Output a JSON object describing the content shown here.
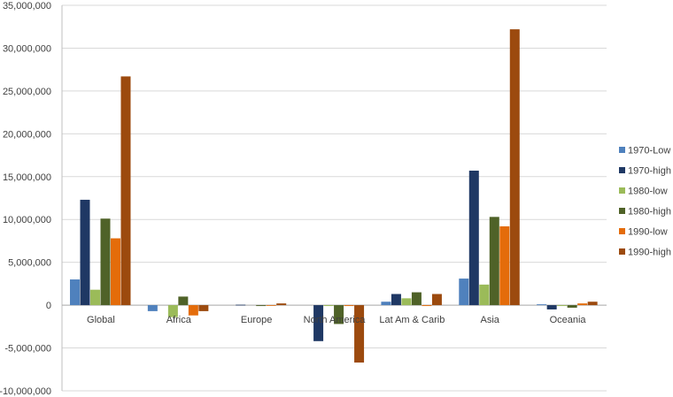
{
  "chart_data": {
    "type": "bar",
    "title": "",
    "xlabel": "",
    "ylabel": "",
    "categories": [
      "Global",
      "Africa",
      "Europe",
      "North America",
      "Lat Am & Carib",
      "Asia",
      "Oceania"
    ],
    "ylim": [
      -10000000,
      35000000
    ],
    "ytick_step": 5000000,
    "yticks": [
      "-10,000,000",
      "-5,000,000",
      "0",
      "5,000,000",
      "10,000,000",
      "15,000,000",
      "20,000,000",
      "25,000,000",
      "30,000,000",
      "35,000,000"
    ],
    "grid": true,
    "legend_position": "right",
    "series": [
      {
        "name": "1970-Low",
        "color": "#4F81BD",
        "values": [
          3000000,
          -700000,
          0,
          0,
          400000,
          3100000,
          100000
        ]
      },
      {
        "name": "1970-high",
        "color": "#1F3864",
        "values": [
          12300000,
          0,
          50000,
          -4200000,
          1300000,
          15700000,
          -500000
        ]
      },
      {
        "name": "1980-low",
        "color": "#9BBB59",
        "values": [
          1800000,
          -1400000,
          0,
          -100000,
          800000,
          2400000,
          -100000
        ]
      },
      {
        "name": "1980-high",
        "color": "#4F6228",
        "values": [
          10100000,
          1000000,
          -100000,
          -2200000,
          1500000,
          10300000,
          -300000
        ]
      },
      {
        "name": "1990-low",
        "color": "#E46C0A",
        "values": [
          7800000,
          -1200000,
          -50000,
          -100000,
          -100000,
          9200000,
          200000
        ]
      },
      {
        "name": "1990-high",
        "color": "#9C4A0E",
        "values": [
          26700000,
          -700000,
          200000,
          -6700000,
          1300000,
          32200000,
          400000
        ]
      }
    ]
  }
}
